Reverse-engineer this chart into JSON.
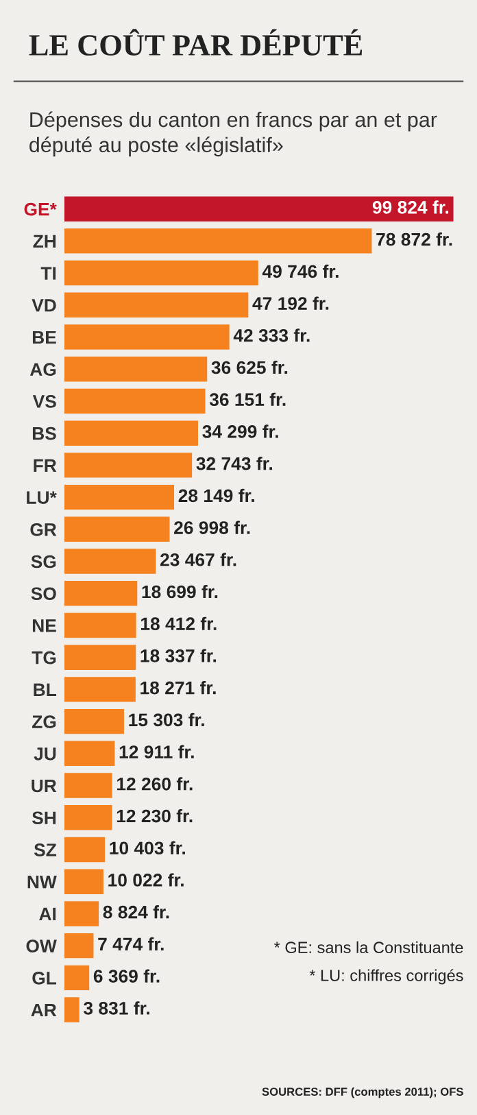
{
  "chart_data": {
    "type": "bar",
    "orientation": "horizontal",
    "title": "LE COÛT PAR DÉPUTÉ",
    "subtitle": "Dépenses du canton en francs par an et par député au poste «législatif»",
    "categories": [
      "GE*",
      "ZH",
      "TI",
      "VD",
      "BE",
      "AG",
      "VS",
      "BS",
      "FR",
      "LU*",
      "GR",
      "SG",
      "SO",
      "NE",
      "TG",
      "BL",
      "ZG",
      "JU",
      "UR",
      "SH",
      "SZ",
      "NW",
      "AI",
      "OW",
      "GL",
      "AR"
    ],
    "values": [
      99824,
      78872,
      49746,
      47192,
      42333,
      36625,
      36151,
      34299,
      32743,
      28149,
      26998,
      23467,
      18699,
      18412,
      18337,
      18271,
      15303,
      12911,
      12260,
      12230,
      10403,
      10022,
      8824,
      7474,
      6369,
      3831
    ],
    "value_labels": [
      "99 824 fr.",
      "78 872 fr.",
      "49 746 fr.",
      "47 192 fr.",
      "42 333 fr.",
      "36 625 fr.",
      "36 151 fr.",
      "34 299 fr.",
      "32 743 fr.",
      "28 149 fr.",
      "26 998 fr.",
      "23 467 fr.",
      "18 699 fr.",
      "18 412 fr.",
      "18 337 fr.",
      "18 271 fr.",
      "15 303 fr.",
      "12 911 fr.",
      "12 260 fr.",
      "12 230 fr.",
      "10 403 fr.",
      "10 022 fr.",
      "8 824 fr.",
      "7 474 fr.",
      "6 369 fr.",
      "3 831 fr."
    ],
    "colors": [
      "#c4162a",
      "#f5821f",
      "#f5821f",
      "#f5821f",
      "#f5821f",
      "#f5821f",
      "#f5821f",
      "#f5821f",
      "#f5821f",
      "#f5821f",
      "#f5821f",
      "#f5821f",
      "#f5821f",
      "#f5821f",
      "#f5821f",
      "#f5821f",
      "#f5821f",
      "#f5821f",
      "#f5821f",
      "#f5821f",
      "#f5821f",
      "#f5821f",
      "#f5821f",
      "#f5821f",
      "#f5821f",
      "#f5821f"
    ],
    "annotations": [
      "* GE: sans la Constituante",
      "* LU: chiffres corrigés",
      "SOURCES: DFF (comptes 2011); OFS"
    ]
  }
}
